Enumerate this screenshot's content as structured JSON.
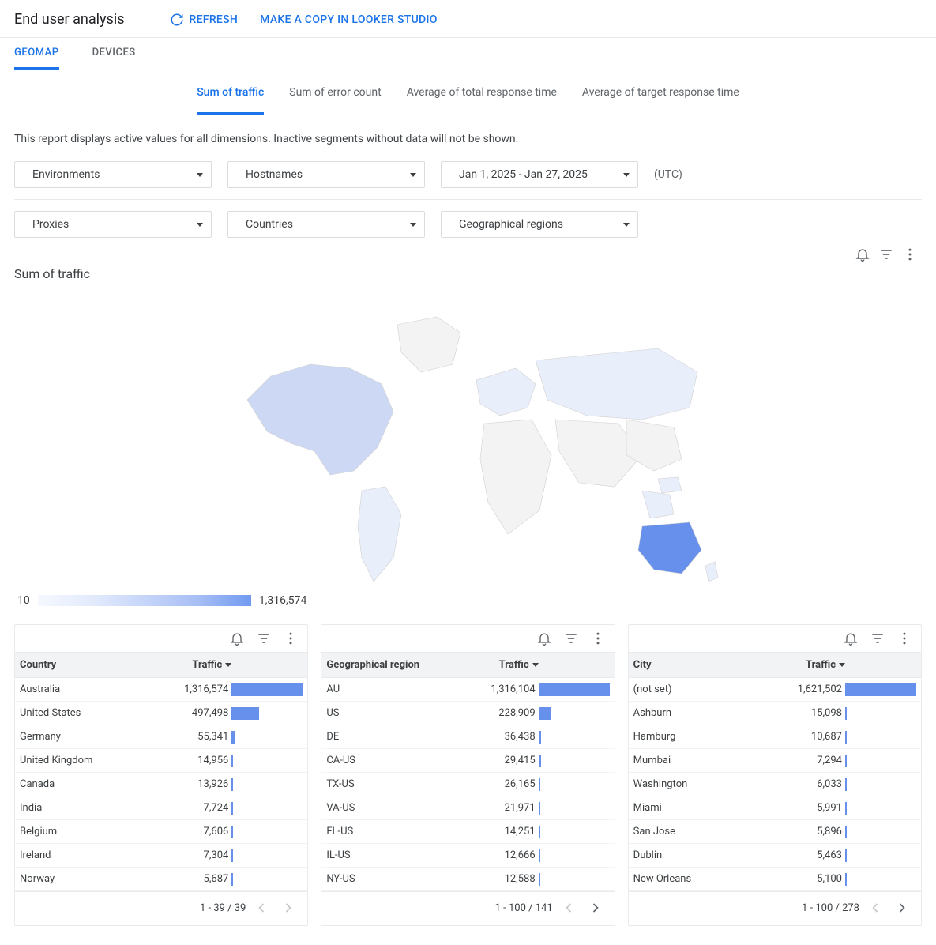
{
  "header": {
    "title": "End user analysis",
    "refresh_label": "Refresh",
    "copy_label": "Make a copy in Looker Studio"
  },
  "primary_tabs": [
    {
      "label": "Geomap",
      "active": true
    },
    {
      "label": "Devices",
      "active": false
    }
  ],
  "metric_tabs": [
    {
      "label": "Sum of traffic",
      "active": true
    },
    {
      "label": "Sum of error count",
      "active": false
    },
    {
      "label": "Average of total response time",
      "active": false
    },
    {
      "label": "Average of target response time",
      "active": false
    }
  ],
  "note": "This report displays active values for all dimensions. Inactive segments without data will not be shown.",
  "filters": {
    "environments": "Environments",
    "hostnames": "Hostnames",
    "date_range": "Jan 1, 2025 - Jan 27, 2025",
    "utc": "(UTC)",
    "proxies": "Proxies",
    "countries": "Countries",
    "regions": "Geographical regions"
  },
  "chart": {
    "title": "Sum of traffic",
    "legend_min": "10",
    "legend_max": "1,316,574",
    "map_colors": {
      "ocean": "#ffffff",
      "land_default": "#f5f5f5",
      "land_low": "#e9eefb",
      "land_mid": "#c9d7f5",
      "land_high": "#6690ec",
      "stroke": "#d0d0d0"
    },
    "legend_gradient": [
      "#f5f8fe",
      "#709af0"
    ]
  },
  "tables": {
    "country": {
      "header_label": "Country",
      "header_traffic": "Traffic",
      "max": 1316574,
      "rows": [
        {
          "label": "Australia",
          "value": 1316574,
          "display": "1,316,574"
        },
        {
          "label": "United States",
          "value": 497498,
          "display": "497,498"
        },
        {
          "label": "Germany",
          "value": 55341,
          "display": "55,341"
        },
        {
          "label": "United Kingdom",
          "value": 14956,
          "display": "14,956"
        },
        {
          "label": "Canada",
          "value": 13926,
          "display": "13,926"
        },
        {
          "label": "India",
          "value": 7724,
          "display": "7,724"
        },
        {
          "label": "Belgium",
          "value": 7606,
          "display": "7,606"
        },
        {
          "label": "Ireland",
          "value": 7304,
          "display": "7,304"
        },
        {
          "label": "Norway",
          "value": 5687,
          "display": "5,687"
        }
      ],
      "footer": "1 - 39 / 39",
      "has_prev": false,
      "has_next": false
    },
    "region": {
      "header_label": "Geographical region",
      "header_traffic": "Traffic",
      "max": 1316104,
      "rows": [
        {
          "label": "AU",
          "value": 1316104,
          "display": "1,316,104"
        },
        {
          "label": "US",
          "value": 228909,
          "display": "228,909"
        },
        {
          "label": "DE",
          "value": 36438,
          "display": "36,438"
        },
        {
          "label": "CA-US",
          "value": 29415,
          "display": "29,415"
        },
        {
          "label": "TX-US",
          "value": 26165,
          "display": "26,165"
        },
        {
          "label": "VA-US",
          "value": 21971,
          "display": "21,971"
        },
        {
          "label": "FL-US",
          "value": 14251,
          "display": "14,251"
        },
        {
          "label": "IL-US",
          "value": 12666,
          "display": "12,666"
        },
        {
          "label": "NY-US",
          "value": 12588,
          "display": "12,588"
        }
      ],
      "footer": "1 - 100 / 141",
      "has_prev": false,
      "has_next": true
    },
    "city": {
      "header_label": "City",
      "header_traffic": "Traffic",
      "max": 1621502,
      "rows": [
        {
          "label": "(not set)",
          "value": 1621502,
          "display": "1,621,502"
        },
        {
          "label": "Ashburn",
          "value": 15098,
          "display": "15,098"
        },
        {
          "label": "Hamburg",
          "value": 10687,
          "display": "10,687"
        },
        {
          "label": "Mumbai",
          "value": 7294,
          "display": "7,294"
        },
        {
          "label": "Washington",
          "value": 6033,
          "display": "6,033"
        },
        {
          "label": "Miami",
          "value": 5991,
          "display": "5,991"
        },
        {
          "label": "San Jose",
          "value": 5896,
          "display": "5,896"
        },
        {
          "label": "Dublin",
          "value": 5463,
          "display": "5,463"
        },
        {
          "label": "New Orleans",
          "value": 5100,
          "display": "5,100"
        }
      ],
      "footer": "1 - 100 / 278",
      "has_prev": false,
      "has_next": true
    }
  },
  "icons": {
    "bell": "bell-icon",
    "filter": "filter-icon",
    "more": "more-vert-icon"
  }
}
